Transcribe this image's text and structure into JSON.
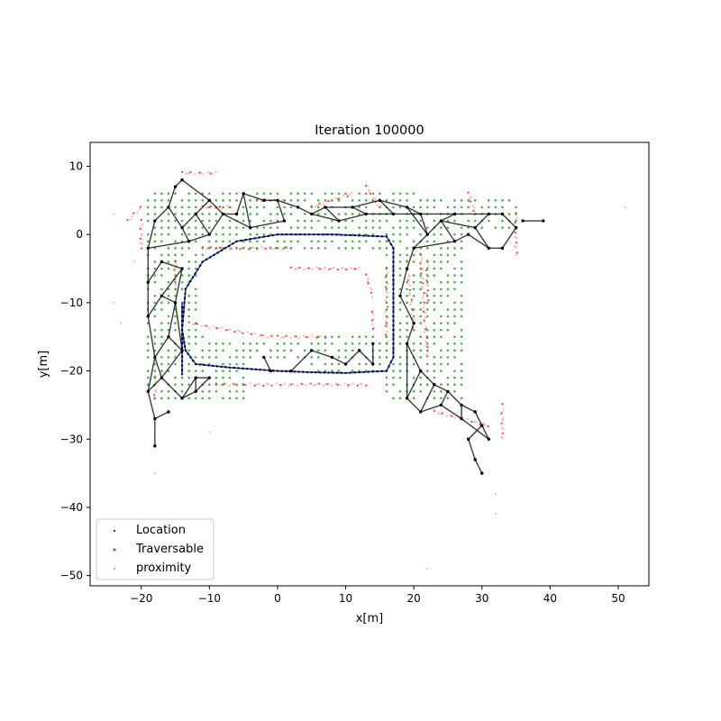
{
  "chart_data": {
    "type": "scatter",
    "title": "Iteration 100000",
    "xlabel": "x[m]",
    "ylabel": "y[m]",
    "xlim": [
      -27.5,
      54.5
    ],
    "ylim": [
      -51.5,
      13.5
    ],
    "xticks": [
      -20,
      -10,
      0,
      10,
      20,
      30,
      40,
      50
    ],
    "yticks": [
      10,
      0,
      -10,
      -20,
      -30,
      -40,
      -50
    ],
    "xtick_labels": [
      "−20",
      "−10",
      "0",
      "10",
      "20",
      "30",
      "40",
      "50"
    ],
    "ytick_labels": [
      "10",
      "0",
      "−10",
      "−20",
      "−30",
      "−40",
      "−50"
    ],
    "grid": false,
    "legend_position": "lower-left",
    "colors": {
      "location": "#1f3fbf",
      "traversable": "#2ca02c",
      "proximity": "#ff2020",
      "graph": "#1a1a1a"
    },
    "series": [
      {
        "name": "Location",
        "kind": "trajectory",
        "points": [
          [
            -14,
            -20.5
          ],
          [
            -14,
            -14
          ],
          [
            -13.5,
            -8
          ],
          [
            -11,
            -4
          ],
          [
            -6,
            -1
          ],
          [
            0,
            0
          ],
          [
            8,
            0
          ],
          [
            16,
            -0.3
          ],
          [
            17,
            -2
          ],
          [
            17,
            -10
          ],
          [
            17,
            -18
          ],
          [
            16,
            -20
          ],
          [
            10,
            -20.3
          ],
          [
            5,
            -20.2
          ],
          [
            0,
            -20
          ],
          [
            -7,
            -19.5
          ],
          [
            -12,
            -19
          ],
          [
            -13.5,
            -17
          ],
          [
            -14,
            -14
          ],
          [
            -14,
            -10
          ]
        ]
      },
      {
        "name": "Traversable",
        "kind": "grid",
        "regions": [
          {
            "x": [
              -19,
              -11
            ],
            "y": [
              -23,
              6
            ],
            "step": 1
          },
          {
            "x": [
              -11,
              21
            ],
            "y": [
              -2,
              6
            ],
            "step": 1
          },
          {
            "x": [
              16,
              27
            ],
            "y": [
              -24,
              4
            ],
            "step": 1
          },
          {
            "x": [
              20,
              35
            ],
            "y": [
              1,
              5
            ],
            "step": 1
          },
          {
            "x": [
              -19,
              -5
            ],
            "y": [
              -24,
              -19
            ],
            "step": 1
          },
          {
            "x": [
              5,
              16
            ],
            "y": [
              -20,
              -15
            ],
            "step": 1
          },
          {
            "x": [
              -11,
              10
            ],
            "y": [
              -18,
              -16
            ],
            "step": 1
          }
        ]
      },
      {
        "name": "proximity",
        "kind": "segments",
        "segments": [
          [
            [
              -20,
              2
            ],
            [
              -20,
              -2
            ]
          ],
          [
            [
              -22,
              2
            ],
            [
              -20,
              4
            ]
          ],
          [
            [
              -14,
              9
            ],
            [
              -9,
              9
            ]
          ],
          [
            [
              -11,
              4
            ],
            [
              -7,
              4
            ]
          ],
          [
            [
              -3,
              5
            ],
            [
              1,
              5
            ]
          ],
          [
            [
              5,
              4
            ],
            [
              11,
              6
            ]
          ],
          [
            [
              13,
              7
            ],
            [
              15,
              4
            ]
          ],
          [
            [
              28,
              6
            ],
            [
              29,
              3
            ]
          ],
          [
            [
              35,
              3
            ],
            [
              35,
              -3
            ]
          ],
          [
            [
              -11,
              -2
            ],
            [
              2,
              -2
            ]
          ],
          [
            [
              2,
              -5
            ],
            [
              12,
              -5
            ]
          ],
          [
            [
              13,
              -6
            ],
            [
              14,
              -9
            ]
          ],
          [
            [
              -13,
              -13
            ],
            [
              -1,
              -15
            ]
          ],
          [
            [
              0,
              -15
            ],
            [
              7,
              -15
            ]
          ],
          [
            [
              14,
              -14
            ],
            [
              14,
              -11
            ]
          ],
          [
            [
              -9,
              -22
            ],
            [
              13,
              -22
            ]
          ],
          [
            [
              19,
              -4
            ],
            [
              20,
              -14
            ]
          ],
          [
            [
              21,
              -3
            ],
            [
              22,
              -18
            ]
          ],
          [
            [
              22,
              -4
            ],
            [
              22,
              -10
            ]
          ],
          [
            [
              -18,
              -21
            ],
            [
              -18,
              -24
            ]
          ],
          [
            [
              23,
              -26
            ],
            [
              31,
              -28
            ]
          ],
          [
            [
              33,
              -25
            ],
            [
              33,
              -30
            ]
          ],
          [
            [
              -15,
              -4
            ],
            [
              -15,
              -8
            ]
          ],
          [
            [
              16,
              -5
            ],
            [
              16,
              -16
            ]
          ]
        ],
        "scattered": [
          [
            -24,
            -10
          ],
          [
            -23,
            -13
          ],
          [
            -17,
            -24
          ],
          [
            -18,
            -35
          ],
          [
            -10,
            -29
          ],
          [
            32,
            -38
          ],
          [
            32,
            -41
          ],
          [
            22,
            -49
          ],
          [
            51,
            4
          ],
          [
            -24,
            3
          ],
          [
            -21,
            -4
          ]
        ]
      },
      {
        "name": "",
        "kind": "graph-nodes",
        "nodes": [
          [
            -18,
            -31
          ],
          [
            -18,
            -27
          ],
          [
            -16,
            -26
          ],
          [
            -19,
            -23
          ],
          [
            -17,
            -21
          ],
          [
            -14,
            -24
          ],
          [
            -12,
            -21
          ],
          [
            -10,
            -21
          ],
          [
            -12,
            -23
          ],
          [
            -18,
            -18
          ],
          [
            -16,
            -15
          ],
          [
            -14,
            -17
          ],
          [
            -19,
            -12
          ],
          [
            -17,
            -9
          ],
          [
            -15,
            -10
          ],
          [
            -19,
            -7
          ],
          [
            -17,
            -4
          ],
          [
            -14,
            -5
          ],
          [
            -19,
            -2
          ],
          [
            -18,
            2
          ],
          [
            -16,
            4
          ],
          [
            -14,
            1
          ],
          [
            -13,
            -1
          ],
          [
            -12,
            3
          ],
          [
            -10,
            0
          ],
          [
            -15,
            7
          ],
          [
            -14,
            8
          ],
          [
            -10,
            5
          ],
          [
            -8,
            3
          ],
          [
            -6,
            3
          ],
          [
            -5,
            6
          ],
          [
            -4,
            1
          ],
          [
            -2,
            5
          ],
          [
            0,
            5
          ],
          [
            1,
            2
          ],
          [
            3,
            4
          ],
          [
            5,
            3
          ],
          [
            7,
            4
          ],
          [
            9,
            2
          ],
          [
            11,
            4
          ],
          [
            13,
            3
          ],
          [
            15,
            5
          ],
          [
            17,
            3
          ],
          [
            19,
            4
          ],
          [
            21,
            3
          ],
          [
            22,
            0
          ],
          [
            24,
            2
          ],
          [
            26,
            3
          ],
          [
            29,
            1
          ],
          [
            31,
            3
          ],
          [
            33,
            3
          ],
          [
            35,
            1
          ],
          [
            33,
            -2
          ],
          [
            31,
            -2
          ],
          [
            28,
            0
          ],
          [
            26,
            -1
          ],
          [
            20,
            -2
          ],
          [
            19,
            -5
          ],
          [
            18,
            -9
          ],
          [
            20,
            -13
          ],
          [
            19,
            -16
          ],
          [
            21,
            -20
          ],
          [
            23,
            -22
          ],
          [
            25,
            -23
          ],
          [
            27,
            -25
          ],
          [
            29,
            -26
          ],
          [
            30,
            -28
          ],
          [
            28,
            -30
          ],
          [
            29,
            -33
          ],
          [
            30,
            -35
          ],
          [
            36,
            2
          ],
          [
            39,
            2
          ],
          [
            5,
            -17
          ],
          [
            8,
            -18
          ],
          [
            10,
            -19
          ],
          [
            12,
            -17
          ],
          [
            14,
            -19
          ],
          [
            -2,
            -18
          ],
          [
            -1,
            -20
          ],
          [
            2,
            -20
          ],
          [
            14,
            -16
          ],
          [
            19,
            -24
          ],
          [
            21,
            -26
          ],
          [
            24,
            -25
          ],
          [
            27,
            -27
          ],
          [
            31,
            -30
          ]
        ],
        "edges": [
          [
            0,
            1
          ],
          [
            1,
            2
          ],
          [
            1,
            3
          ],
          [
            3,
            4
          ],
          [
            4,
            5
          ],
          [
            5,
            6
          ],
          [
            6,
            7
          ],
          [
            5,
            8
          ],
          [
            8,
            6
          ],
          [
            3,
            9
          ],
          [
            4,
            9
          ],
          [
            9,
            10
          ],
          [
            10,
            11
          ],
          [
            11,
            4
          ],
          [
            9,
            12
          ],
          [
            12,
            13
          ],
          [
            13,
            14
          ],
          [
            14,
            10
          ],
          [
            12,
            15
          ],
          [
            15,
            16
          ],
          [
            16,
            17
          ],
          [
            17,
            13
          ],
          [
            15,
            18
          ],
          [
            18,
            19
          ],
          [
            19,
            20
          ],
          [
            20,
            21
          ],
          [
            21,
            22
          ],
          [
            22,
            18
          ],
          [
            21,
            23
          ],
          [
            23,
            24
          ],
          [
            24,
            22
          ],
          [
            20,
            25
          ],
          [
            25,
            26
          ],
          [
            26,
            27
          ],
          [
            27,
            23
          ],
          [
            27,
            28
          ],
          [
            28,
            29
          ],
          [
            29,
            30
          ],
          [
            30,
            31
          ],
          [
            31,
            28
          ],
          [
            30,
            32
          ],
          [
            32,
            33
          ],
          [
            33,
            34
          ],
          [
            34,
            31
          ],
          [
            33,
            35
          ],
          [
            35,
            36
          ],
          [
            36,
            37
          ],
          [
            37,
            38
          ],
          [
            38,
            36
          ],
          [
            37,
            39
          ],
          [
            39,
            40
          ],
          [
            40,
            38
          ],
          [
            39,
            41
          ],
          [
            41,
            42
          ],
          [
            42,
            40
          ],
          [
            41,
            43
          ],
          [
            43,
            44
          ],
          [
            44,
            42
          ],
          [
            43,
            45
          ],
          [
            44,
            45
          ],
          [
            45,
            46
          ],
          [
            46,
            47
          ],
          [
            47,
            44
          ],
          [
            46,
            48
          ],
          [
            48,
            49
          ],
          [
            49,
            47
          ],
          [
            49,
            50
          ],
          [
            50,
            51
          ],
          [
            51,
            52
          ],
          [
            52,
            53
          ],
          [
            53,
            48
          ],
          [
            53,
            54
          ],
          [
            54,
            55
          ],
          [
            55,
            46
          ],
          [
            55,
            56
          ],
          [
            56,
            45
          ],
          [
            56,
            57
          ],
          [
            57,
            58
          ],
          [
            58,
            59
          ],
          [
            59,
            60
          ],
          [
            60,
            61
          ],
          [
            61,
            62
          ],
          [
            62,
            63
          ],
          [
            63,
            64
          ],
          [
            64,
            65
          ],
          [
            65,
            66
          ],
          [
            66,
            67
          ],
          [
            67,
            68
          ],
          [
            68,
            69
          ],
          [
            70,
            71
          ],
          [
            72,
            73
          ],
          [
            73,
            74
          ],
          [
            74,
            75
          ],
          [
            75,
            76
          ],
          [
            76,
            80
          ],
          [
            77,
            78
          ],
          [
            78,
            79
          ],
          [
            79,
            72
          ],
          [
            60,
            81
          ],
          [
            81,
            82
          ],
          [
            82,
            83
          ],
          [
            83,
            84
          ],
          [
            84,
            85
          ],
          [
            85,
            66
          ],
          [
            83,
            63
          ],
          [
            84,
            64
          ],
          [
            24,
            28
          ],
          [
            14,
            17
          ],
          [
            11,
            14
          ],
          [
            7,
            8
          ],
          [
            62,
            82
          ],
          [
            61,
            81
          ]
        ]
      }
    ]
  },
  "legend": {
    "location_label": "Location",
    "traversable_label": "Traversable",
    "proximity_label": "proximity"
  }
}
